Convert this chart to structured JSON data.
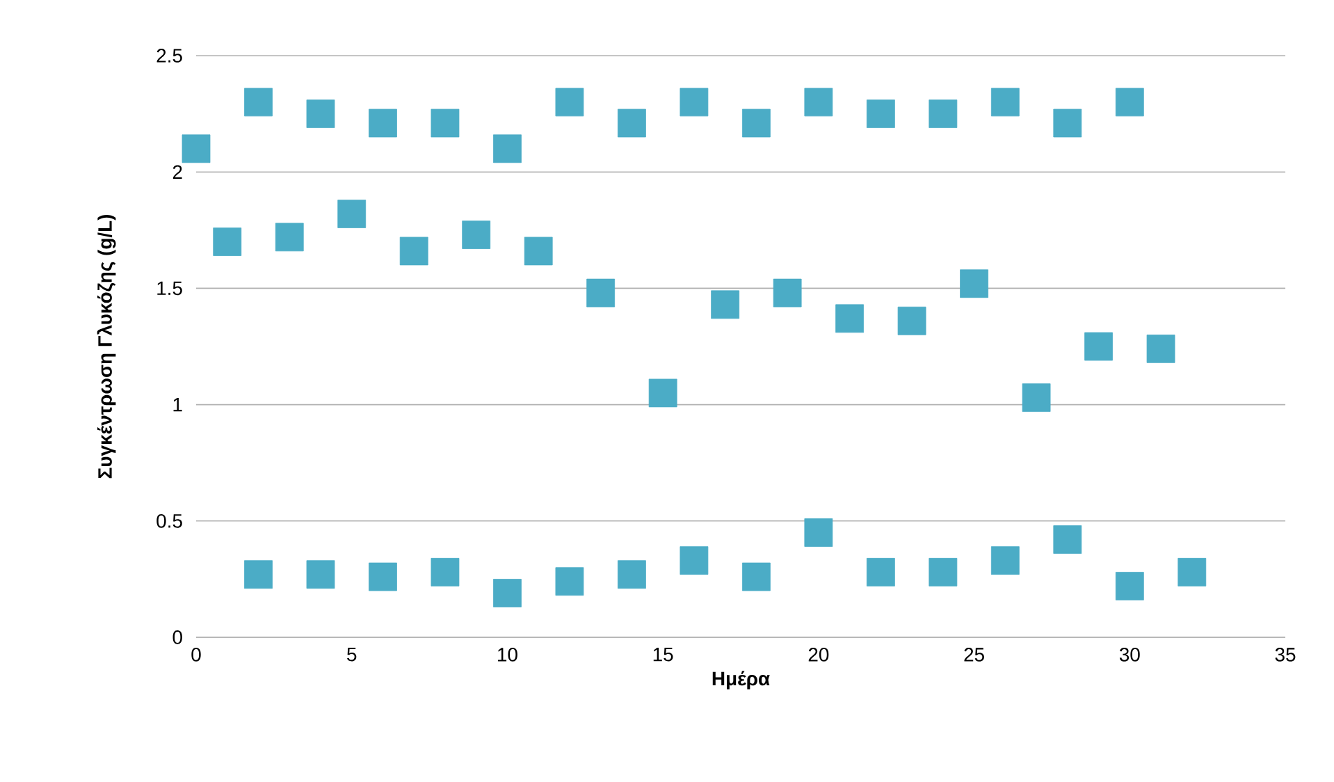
{
  "chart_data": {
    "type": "scatter",
    "xlabel": "Ημέρα",
    "ylabel": "Συγκέντρωση Γλυκόζης (g/L)",
    "color": "#4bacc6",
    "marker": "square",
    "grid": "y",
    "xlim": [
      0,
      35
    ],
    "ylim": [
      0,
      2.5
    ],
    "xticks": [
      0,
      5,
      10,
      15,
      20,
      25,
      30,
      35
    ],
    "yticks": [
      0,
      0.5,
      1,
      1.5,
      2,
      2.5
    ],
    "x": [
      0,
      1,
      2,
      2,
      3,
      4,
      4,
      5,
      6,
      6,
      7,
      8,
      8,
      9,
      10,
      10,
      11,
      12,
      12,
      13,
      14,
      14,
      15,
      16,
      16,
      17,
      18,
      18,
      19,
      20,
      20,
      21,
      22,
      22,
      23,
      24,
      24,
      25,
      26,
      26,
      27,
      28,
      28,
      29,
      30,
      30,
      31,
      32
    ],
    "values": [
      2.1,
      1.7,
      2.3,
      0.27,
      1.72,
      2.25,
      0.27,
      1.82,
      2.21,
      0.26,
      1.66,
      2.21,
      0.28,
      1.73,
      2.1,
      0.19,
      1.66,
      2.3,
      0.24,
      1.48,
      2.21,
      0.27,
      1.05,
      2.3,
      0.33,
      1.43,
      2.21,
      0.26,
      1.48,
      2.3,
      0.45,
      1.37,
      2.25,
      0.28,
      1.36,
      2.25,
      0.28,
      1.52,
      2.3,
      0.33,
      1.03,
      2.21,
      0.42,
      1.25,
      2.3,
      0.22,
      1.24,
      0.28
    ]
  }
}
